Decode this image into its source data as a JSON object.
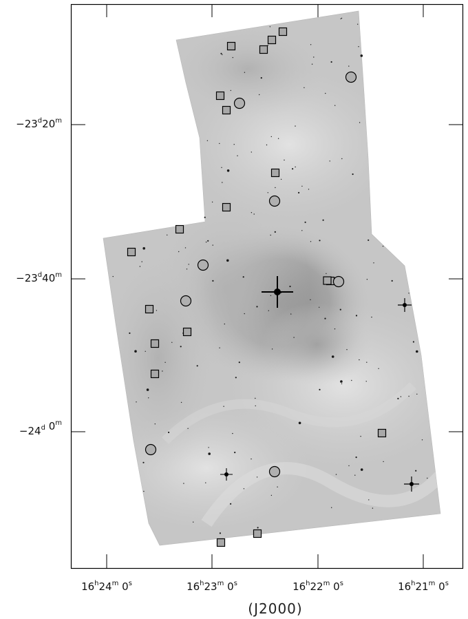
{
  "figure": {
    "x_axis": {
      "title": "(J2000)",
      "ticks": [
        {
          "h": "16",
          "m": "24",
          "s": "0"
        },
        {
          "h": "16",
          "m": "23",
          "s": "0"
        },
        {
          "h": "16",
          "m": "22",
          "s": "0"
        },
        {
          "h": "16",
          "m": "21",
          "s": "0"
        }
      ]
    },
    "y_axis": {
      "ticks": [
        {
          "sign": "−",
          "d": "23",
          "m": "20"
        },
        {
          "sign": "−",
          "d": "23",
          "m": "40"
        },
        {
          "sign": "−",
          "d": "24",
          "m": "0"
        }
      ]
    },
    "marker_counts": {
      "squares": 19,
      "circles": 9
    },
    "colors": {
      "background": "#ffffff",
      "frame": "#000000",
      "nebula_light": "#d2d2d2",
      "nebula_dark": "#8f8f8f",
      "marker_stroke": "#000000"
    }
  }
}
